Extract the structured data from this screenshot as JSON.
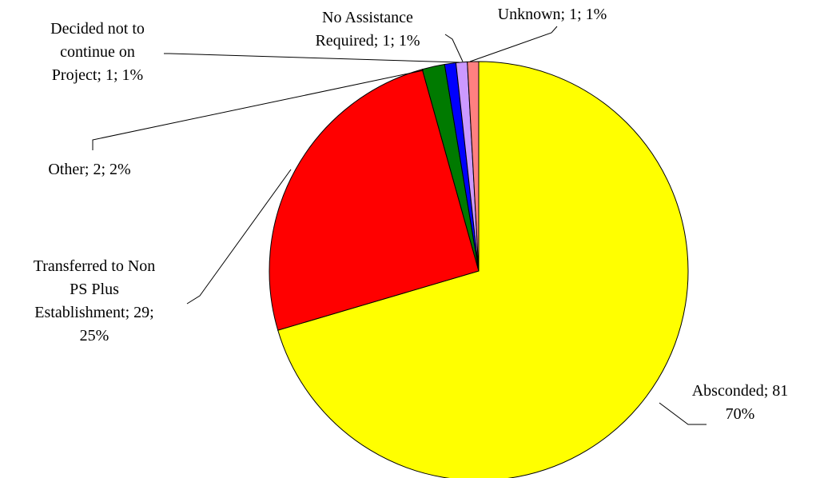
{
  "chart_data": {
    "type": "pie",
    "title": "",
    "slices": [
      {
        "name": "Absconded",
        "value": 81,
        "percent": "70%",
        "color": "#FFFF00",
        "label_lines": [
          "Absconded; 81",
          "70%"
        ]
      },
      {
        "name": "Transferred to Non PS Plus Establishment",
        "value": 29,
        "percent": "25%",
        "color": "#FF0000",
        "label_lines": [
          "Transferred to Non",
          "PS Plus",
          "Establishment; 29;",
          "25%"
        ]
      },
      {
        "name": "Other",
        "value": 2,
        "percent": "2%",
        "color": "#007A00",
        "label_lines": [
          "Other; 2; 2%"
        ]
      },
      {
        "name": "Decided not to continue on Project",
        "value": 1,
        "percent": "1%",
        "color": "#0000FF",
        "label_lines": [
          "Decided not to",
          "continue on",
          "Project; 1; 1%"
        ]
      },
      {
        "name": "No Assistance Required",
        "value": 1,
        "percent": "1%",
        "color": "#CC99FF",
        "label_lines": [
          "No Assistance",
          "Required; 1; 1%"
        ]
      },
      {
        "name": "Unknown",
        "value": 1,
        "percent": "1%",
        "color": "#FF8080",
        "label_lines": [
          "Unknown; 1; 1%"
        ]
      }
    ],
    "start_angle_deg": 0,
    "direction": "clockwise",
    "legend": "none",
    "data_labels": "outside-with-leader-lines"
  }
}
